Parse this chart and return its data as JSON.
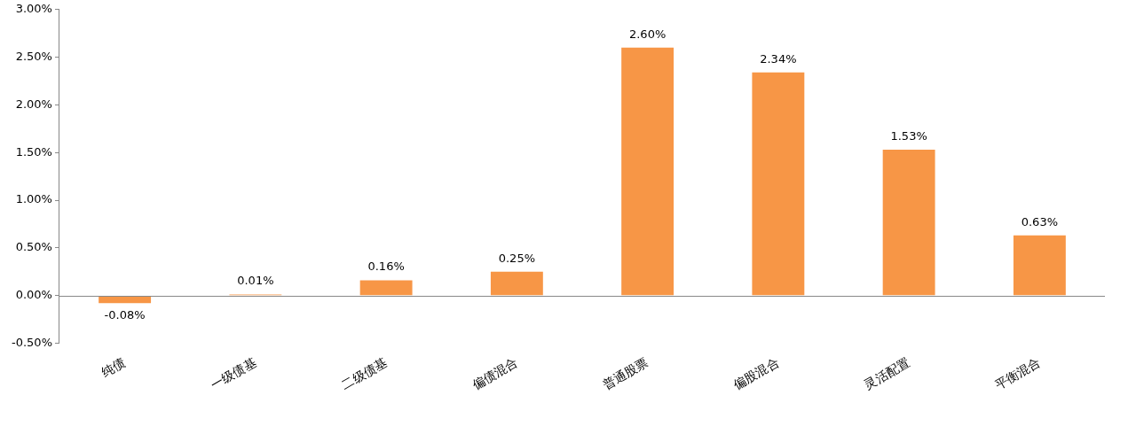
{
  "chart_data": {
    "type": "bar",
    "categories": [
      "纯债",
      "一级债基",
      "二级债基",
      "偏债混合",
      "普通股票",
      "偏股混合",
      "灵活配置",
      "平衡混合"
    ],
    "values": [
      -0.08,
      0.01,
      0.16,
      0.25,
      2.6,
      2.34,
      1.53,
      0.63
    ],
    "value_labels": [
      "-0.08%",
      "0.01%",
      "0.16%",
      "0.25%",
      "2.60%",
      "2.34%",
      "1.53%",
      "0.63%"
    ],
    "color": "#f79646",
    "ylim": [
      -0.5,
      3.0
    ],
    "yticks": [
      {
        "value": -0.5,
        "label": "-0.50%"
      },
      {
        "value": 0,
        "label": "0.00%"
      },
      {
        "value": 0.5,
        "label": "0.50%"
      },
      {
        "value": 1,
        "label": "1.00%"
      },
      {
        "value": 1.5,
        "label": "1.50%"
      },
      {
        "value": 2,
        "label": "2.00%"
      },
      {
        "value": 2.5,
        "label": "2.50%"
      },
      {
        "value": 3,
        "label": "3.00%"
      }
    ],
    "legend": false
  }
}
